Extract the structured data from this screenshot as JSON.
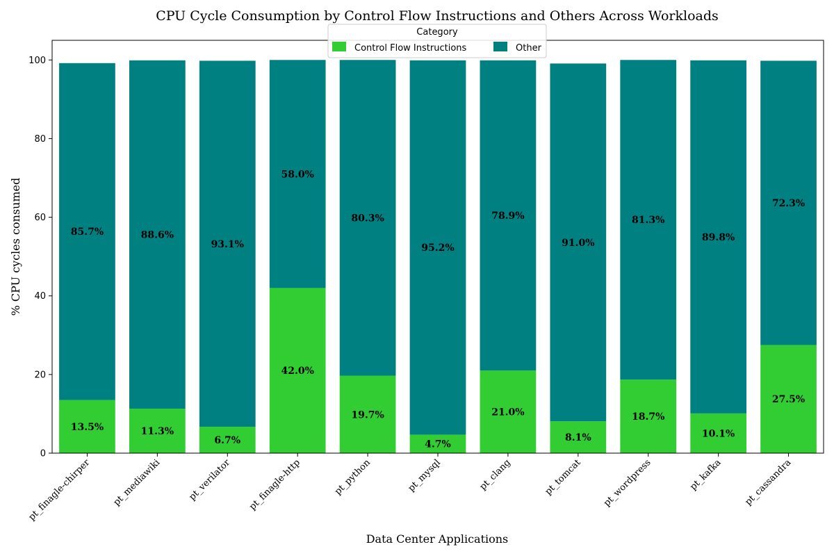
{
  "chart_data": {
    "type": "bar",
    "stacked": true,
    "title": "CPU Cycle Consumption by Control Flow Instructions and Others Across Workloads",
    "xlabel": "Data Center Applications",
    "ylabel": "% CPU cycles consumed",
    "ylim": [
      0,
      105
    ],
    "yticks": [
      0,
      20,
      40,
      60,
      80,
      100
    ],
    "categories": [
      "pt_finagle-chirper",
      "pt_mediawiki",
      "pt_verilator",
      "pt_finagle-http",
      "pt_python",
      "pt_mysql",
      "pt_clang",
      "pt_tomcat",
      "pt_wordpress",
      "pt_kafka",
      "pt_cassandra"
    ],
    "series": [
      {
        "name": "Control Flow Instructions",
        "color": "#32cd32",
        "values": [
          13.5,
          11.3,
          6.7,
          42.0,
          19.7,
          4.7,
          21.0,
          8.1,
          18.7,
          10.1,
          27.5
        ],
        "labels": [
          "13.5%",
          "11.3%",
          "6.7%",
          "42.0%",
          "19.7%",
          "4.7%",
          "21.0%",
          "8.1%",
          "18.7%",
          "10.1%",
          "27.5%"
        ]
      },
      {
        "name": "Other",
        "color": "#008080",
        "values": [
          85.7,
          88.6,
          93.1,
          58.0,
          80.3,
          95.2,
          78.9,
          91.0,
          81.3,
          89.8,
          72.3
        ],
        "labels": [
          "85.7%",
          "88.6%",
          "93.1%",
          "58.0%",
          "80.3%",
          "95.2%",
          "78.9%",
          "91.0%",
          "81.3%",
          "89.8%",
          "72.3%"
        ]
      }
    ],
    "legend": {
      "title": "Category",
      "placement": "top-center",
      "columns": 2
    },
    "grid": false
  }
}
